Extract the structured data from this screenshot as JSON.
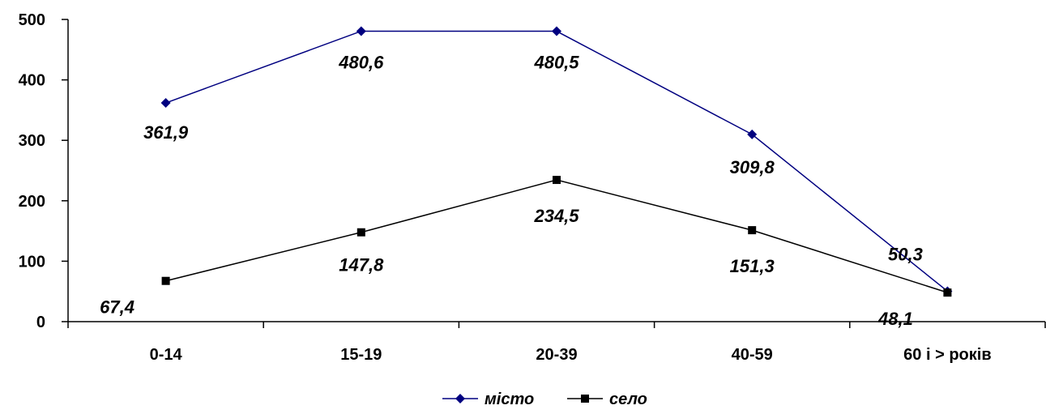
{
  "chart_data": {
    "type": "line",
    "categories": [
      "0-14",
      "15-19",
      "20-39",
      "40-59",
      "60 і > років"
    ],
    "ylim": [
      0,
      500
    ],
    "yticks": [
      0,
      100,
      200,
      300,
      400,
      500
    ],
    "grid": false,
    "legend": "bottom",
    "series": [
      {
        "name": "місто",
        "values": [
          361.9,
          480.6,
          480.5,
          309.8,
          50.3
        ],
        "labels": [
          "361,9",
          "480,6",
          "480,5",
          "309,8",
          "50,3"
        ],
        "color": "#000080",
        "marker": "diamond"
      },
      {
        "name": "село",
        "values": [
          67.4,
          147.8,
          234.5,
          151.3,
          48.1
        ],
        "labels": [
          "67,4",
          "147,8",
          "234,5",
          "151,3",
          "48,1"
        ],
        "color": "#000000",
        "marker": "square"
      }
    ]
  }
}
